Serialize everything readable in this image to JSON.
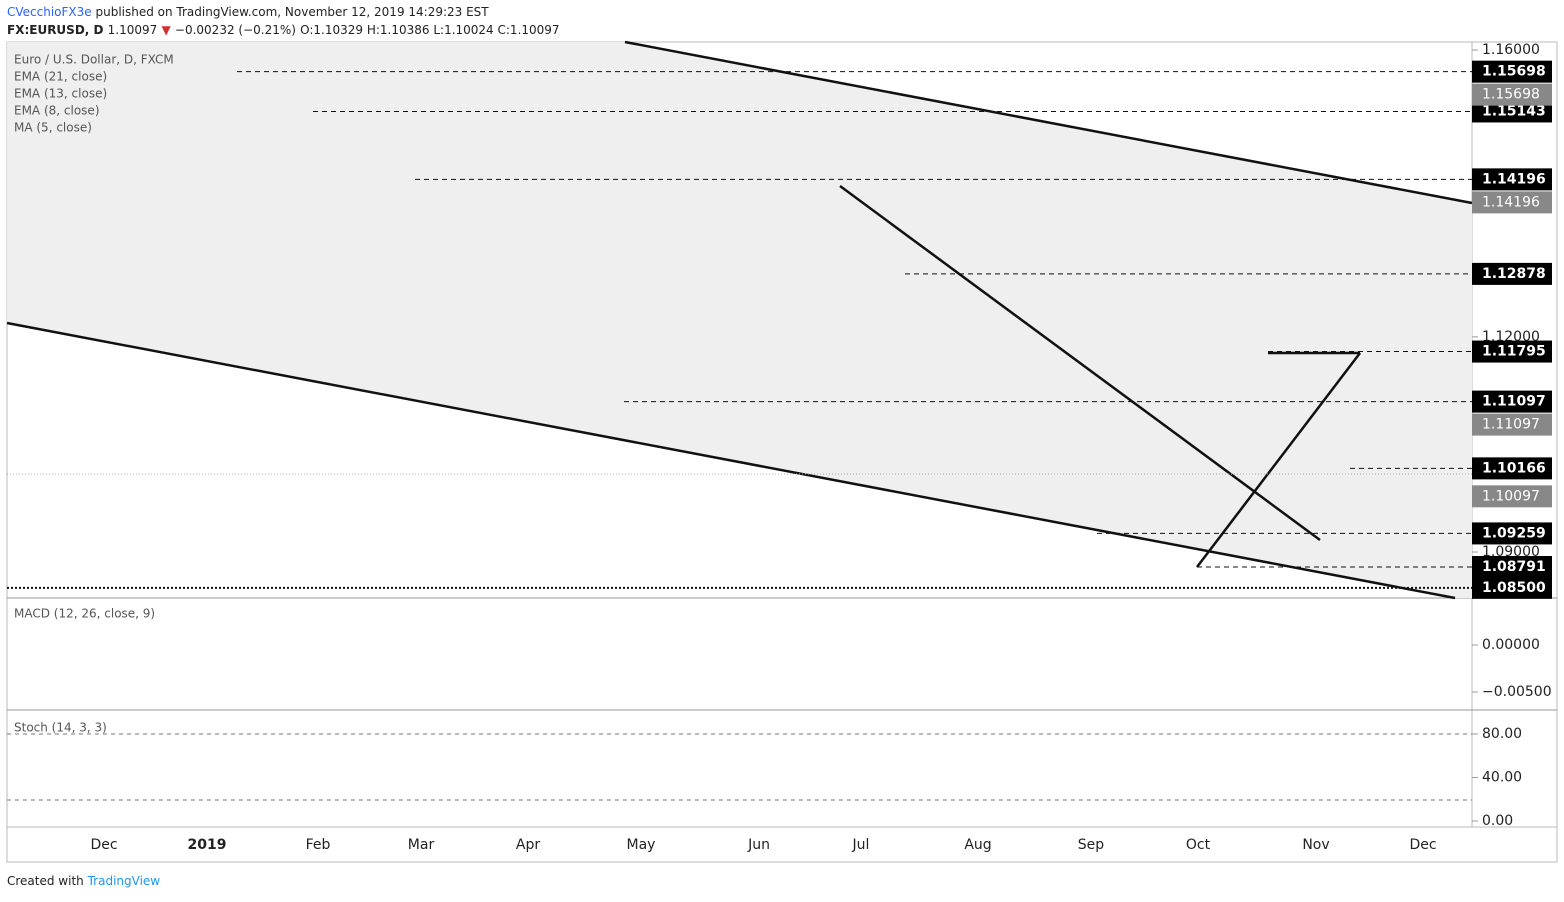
{
  "header": {
    "publisher": "CVecchioFX3e",
    "published": "published on TradingView.com, November 12, 2019 14:29:23 EST",
    "symbol": "FX:EURUSD, D",
    "last": "1.10097",
    "change": "−0.00232 (−0.21%)",
    "ohlc": "O:1.10329 H:1.10386 L:1.10024 C:1.10097"
  },
  "legend": [
    "Euro / U.S. Dollar, D, FXCM",
    "EMA (21, close)",
    "EMA (13, close)",
    "EMA (8, close)",
    "MA (5, close)"
  ],
  "price_axis": {
    "ticks": [
      {
        "value": 1.16,
        "label": "1.16000"
      },
      {
        "value": 1.12,
        "label": "1.12000"
      },
      {
        "value": 1.09,
        "label": "1.09000"
      }
    ],
    "levels": [
      {
        "value": 1.15698,
        "label": "1.15698"
      },
      {
        "value": 1.15143,
        "label": "1.15143"
      },
      {
        "value": 1.14196,
        "label": "1.14196"
      },
      {
        "value": 1.12878,
        "label": "1.12878"
      },
      {
        "value": 1.11795,
        "label": "1.11795"
      },
      {
        "value": 1.11097,
        "label": "1.11097"
      },
      {
        "value": 1.10166,
        "label": "1.10166"
      },
      {
        "value": 1.09259,
        "label": "1.09259"
      },
      {
        "value": 1.08791,
        "label": "1.08791"
      },
      {
        "value": 1.085,
        "label": "1.08500"
      }
    ],
    "indicator_labels": [
      {
        "value": 1.15698,
        "label": "1.15698"
      },
      {
        "value": 1.14196,
        "label": "1.14196"
      },
      {
        "value": 1.11097,
        "label": "1.11097"
      },
      {
        "value": 1.10097,
        "label": "1.10097"
      }
    ]
  },
  "macd": {
    "title": "MACD (12, 26, close, 9)",
    "ticks": [
      {
        "value": 0,
        "label": "0.00000"
      },
      {
        "value": -0.005,
        "label": "−0.00500"
      }
    ]
  },
  "stoch": {
    "title": "Stoch (14, 3, 3)",
    "ticks": [
      {
        "value": 80,
        "label": "80.00"
      },
      {
        "value": 40,
        "label": "40.00"
      },
      {
        "value": 0,
        "label": "0.00"
      }
    ]
  },
  "time_axis": [
    "Dec",
    "2019",
    "Feb",
    "Mar",
    "Apr",
    "May",
    "Jun",
    "Jul",
    "Aug",
    "Sep",
    "Oct",
    "Nov",
    "Dec"
  ],
  "footer": {
    "created": "Created with",
    "brand": "TradingView"
  }
}
